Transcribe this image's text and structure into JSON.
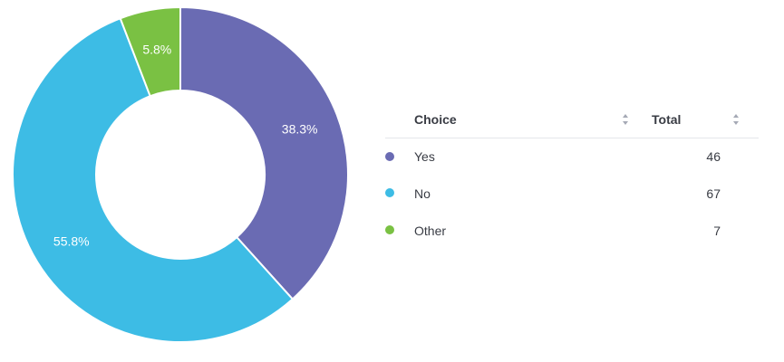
{
  "chart_data": {
    "type": "pie",
    "donut": true,
    "categories": [
      "Yes",
      "No",
      "Other"
    ],
    "values": [
      46,
      67,
      7
    ],
    "percent_labels": [
      "38.3%",
      "55.8%",
      "5.8%"
    ],
    "colors": [
      "#6a6bb3",
      "#3dbce5",
      "#7ac143"
    ],
    "legend": "right"
  },
  "table": {
    "headers": {
      "choice": "Choice",
      "total": "Total"
    },
    "rows": [
      {
        "choice": "Yes",
        "total": "46",
        "color": "#6a6bb3"
      },
      {
        "choice": "No",
        "total": "67",
        "color": "#3dbce5"
      },
      {
        "choice": "Other",
        "total": "7",
        "color": "#7ac143"
      }
    ]
  }
}
